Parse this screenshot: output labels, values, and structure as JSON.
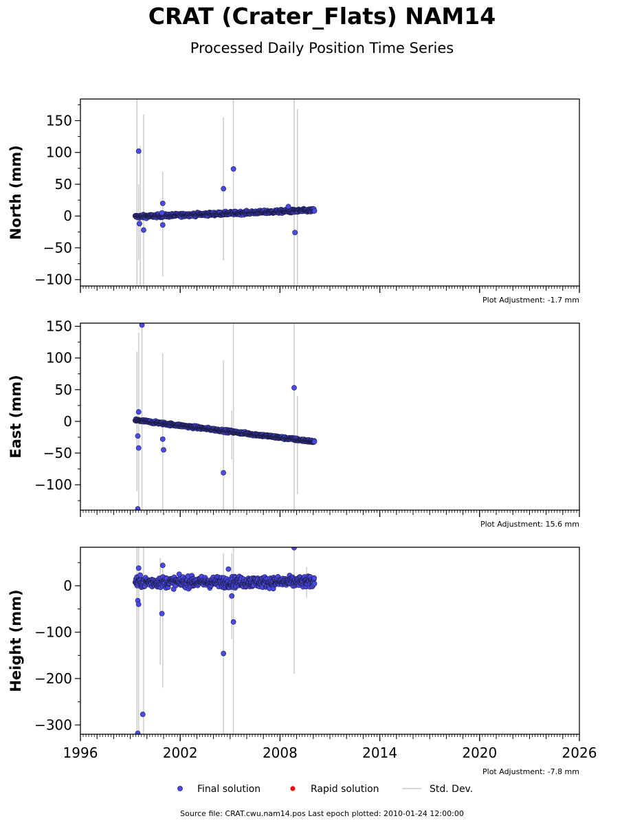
{
  "title": "CRAT (Crater_Flats) NAM14",
  "subtitle": "Processed Daily Position Time Series",
  "source_line": "Source file: CRAT.cwu.nam14.pos  Last epoch plotted: 2010-01-24 12:00:00",
  "colors": {
    "final_solution": "#4a4ae8",
    "final_solution_edge": "#1a1a40",
    "rapid_solution": "#e01010",
    "std_dev": "#cccccc"
  },
  "legend": [
    {
      "key": "final",
      "label": "Final solution"
    },
    {
      "key": "rapid",
      "label": "Rapid solution"
    },
    {
      "key": "std",
      "label": "Std. Dev."
    }
  ],
  "chart_data": {
    "type": "scatter",
    "x_label": "",
    "x_range": [
      1996,
      2026
    ],
    "x_ticks": [
      1996,
      2002,
      2008,
      2014,
      2020,
      2026
    ],
    "span": {
      "start_year": 1999.3,
      "end_year": 2010.07
    },
    "panels": [
      {
        "key": "north",
        "ylabel": "North (mm)",
        "ylim": [
          -110,
          184
        ],
        "yticks": [
          -100,
          -50,
          0,
          50,
          100,
          150
        ],
        "adjustment": "Plot Adjustment: -1.7 mm",
        "trend": {
          "start": -1,
          "end": 9
        },
        "scatter": 2.5,
        "outliers": [
          {
            "x": 1999.5,
            "y": 102
          },
          {
            "x": 1999.55,
            "y": -12
          },
          {
            "x": 1999.8,
            "y": -22
          },
          {
            "x": 2000.9,
            "y": 5
          },
          {
            "x": 2000.95,
            "y": 20
          },
          {
            "x": 2000.95,
            "y": -14
          },
          {
            "x": 2004.6,
            "y": 43
          },
          {
            "x": 2005.2,
            "y": 74
          },
          {
            "x": 2008.9,
            "y": -26
          },
          {
            "x": 2008.5,
            "y": 15
          }
        ],
        "std_bars": [
          {
            "x": 1999.4,
            "lo": -110,
            "hi": 184
          },
          {
            "x": 1999.5,
            "lo": -70,
            "hi": 50
          },
          {
            "x": 1999.6,
            "lo": -110,
            "hi": 110
          },
          {
            "x": 1999.8,
            "lo": -110,
            "hi": 160
          },
          {
            "x": 2000.95,
            "lo": -95,
            "hi": 70
          },
          {
            "x": 2004.6,
            "lo": -70,
            "hi": 155
          },
          {
            "x": 2005.2,
            "lo": -110,
            "hi": 184
          },
          {
            "x": 2008.85,
            "lo": -110,
            "hi": 184
          },
          {
            "x": 2009.05,
            "lo": -110,
            "hi": 168
          }
        ]
      },
      {
        "key": "east",
        "ylabel": "East (mm)",
        "ylim": [
          -140,
          155
        ],
        "yticks": [
          -100,
          -50,
          0,
          50,
          100,
          150
        ],
        "adjustment": "Plot Adjustment: 15.6 mm",
        "trend": {
          "start": 2,
          "end": -32
        },
        "scatter": 2.0,
        "outliers": [
          {
            "x": 1999.7,
            "y": 152
          },
          {
            "x": 1999.5,
            "y": 15
          },
          {
            "x": 1999.45,
            "y": -23
          },
          {
            "x": 1999.5,
            "y": -42
          },
          {
            "x": 1999.45,
            "y": -138
          },
          {
            "x": 2000.95,
            "y": -28
          },
          {
            "x": 2001.0,
            "y": -45
          },
          {
            "x": 2004.6,
            "y": -81
          },
          {
            "x": 2008.85,
            "y": 53
          }
        ],
        "std_bars": [
          {
            "x": 1999.4,
            "lo": -110,
            "hi": 110
          },
          {
            "x": 1999.5,
            "lo": -140,
            "hi": 140
          },
          {
            "x": 1999.7,
            "lo": -140,
            "hi": 155
          },
          {
            "x": 2000.95,
            "lo": -140,
            "hi": 108
          },
          {
            "x": 2004.6,
            "lo": -140,
            "hi": 96
          },
          {
            "x": 2005.1,
            "lo": -60,
            "hi": 17
          },
          {
            "x": 2005.2,
            "lo": -140,
            "hi": 155
          },
          {
            "x": 2008.85,
            "lo": -140,
            "hi": 155
          },
          {
            "x": 2009.05,
            "lo": -115,
            "hi": 40
          }
        ]
      },
      {
        "key": "height",
        "ylabel": "Height (mm)",
        "ylim": [
          -320,
          83
        ],
        "yticks": [
          -300,
          -200,
          -100,
          0
        ],
        "adjustment": "Plot Adjustment: -7.8 mm",
        "trend": {
          "start": 8,
          "end": 8
        },
        "scatter": 11,
        "outliers": [
          {
            "x": 1999.45,
            "y": -32
          },
          {
            "x": 1999.5,
            "y": -40
          },
          {
            "x": 1999.5,
            "y": 38
          },
          {
            "x": 1999.45,
            "y": -318
          },
          {
            "x": 1999.75,
            "y": -277
          },
          {
            "x": 2000.9,
            "y": -60
          },
          {
            "x": 2000.95,
            "y": 44
          },
          {
            "x": 2004.6,
            "y": -146
          },
          {
            "x": 2004.9,
            "y": 36
          },
          {
            "x": 2005.1,
            "y": -22
          },
          {
            "x": 2005.2,
            "y": -78
          },
          {
            "x": 2008.85,
            "y": 82
          }
        ],
        "std_bars": [
          {
            "x": 1999.4,
            "lo": -320,
            "hi": 83
          },
          {
            "x": 1999.5,
            "lo": -320,
            "hi": 83
          },
          {
            "x": 1999.8,
            "lo": -320,
            "hi": 83
          },
          {
            "x": 2000.95,
            "lo": -220,
            "hi": 40
          },
          {
            "x": 2000.8,
            "lo": -170,
            "hi": 60
          },
          {
            "x": 2004.6,
            "lo": -320,
            "hi": 70
          },
          {
            "x": 2005.1,
            "lo": -115,
            "hi": 70
          },
          {
            "x": 2005.2,
            "lo": -320,
            "hi": 83
          },
          {
            "x": 2008.85,
            "lo": -190,
            "hi": 83
          },
          {
            "x": 2009.6,
            "lo": -25,
            "hi": 40
          }
        ]
      }
    ]
  }
}
